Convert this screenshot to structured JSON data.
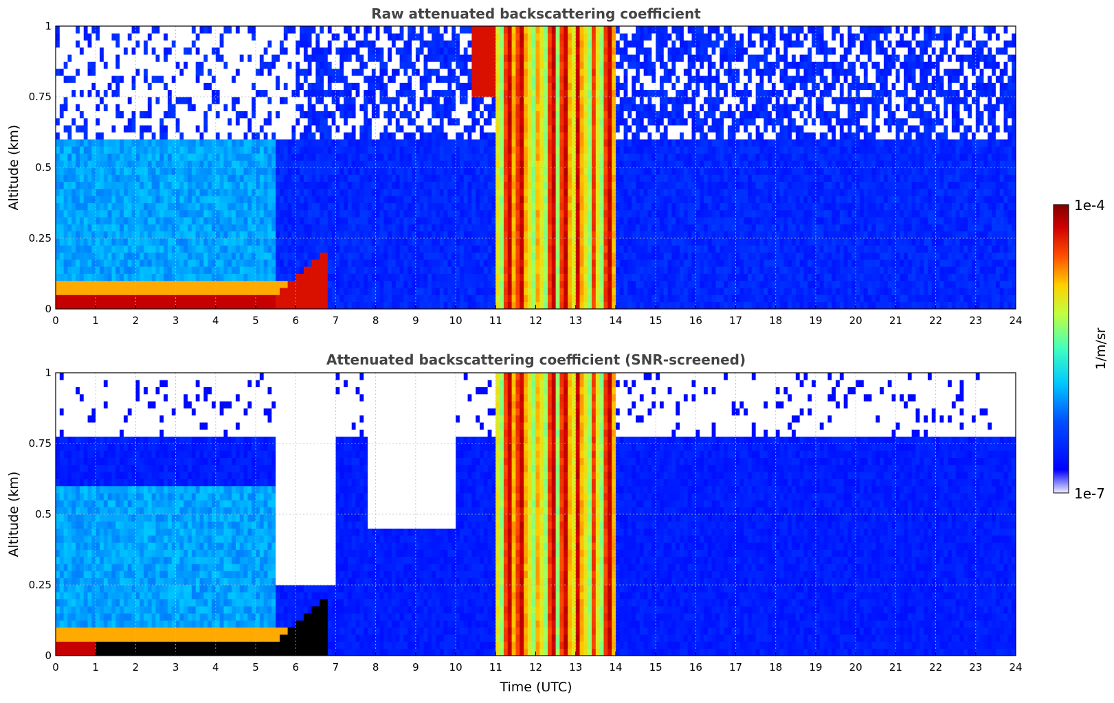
{
  "chart_data": [
    {
      "type": "heatmap",
      "title": "Raw attenuated backscattering coefficient",
      "xlabel": "",
      "ylabel": "Altitude (km)",
      "xlim": [
        0,
        24
      ],
      "ylim": [
        0,
        1
      ],
      "x_ticks": [
        "0",
        "1",
        "2",
        "3",
        "4",
        "5",
        "6",
        "7",
        "8",
        "9",
        "10",
        "11",
        "12",
        "13",
        "14",
        "15",
        "16",
        "17",
        "18",
        "19",
        "20",
        "21",
        "22",
        "23",
        "24"
      ],
      "y_ticks": [
        "0",
        "0.25",
        "0.5",
        "0.75",
        "1"
      ],
      "grid": true,
      "features": [
        {
          "start_hour": 0.2,
          "end_hour": 5.5,
          "altitude_km": 0.02,
          "level": "high"
        },
        {
          "start_hour": 5.5,
          "end_hour": 6.8,
          "altitude_km_from": 0.05,
          "altitude_km_to": 0.2,
          "level": "high"
        },
        {
          "start_hour": 11.0,
          "end_hour": 14.0,
          "altitude_km": "0-1",
          "level": "high",
          "note": "full column"
        },
        {
          "start_hour": 10.5,
          "end_hour": 11.0,
          "altitude_km_from": 0.8,
          "altitude_km_to": 1.0,
          "level": "high"
        }
      ]
    },
    {
      "type": "heatmap",
      "title": "Attenuated backscattering coefficient (SNR-screened)",
      "xlabel": "Time (UTC)",
      "ylabel": "Altitude (km)",
      "xlim": [
        0,
        24
      ],
      "ylim": [
        0,
        1
      ],
      "x_ticks": [
        "0",
        "1",
        "2",
        "3",
        "4",
        "5",
        "6",
        "7",
        "8",
        "9",
        "10",
        "11",
        "12",
        "13",
        "14",
        "15",
        "16",
        "17",
        "18",
        "19",
        "20",
        "21",
        "22",
        "23",
        "24"
      ],
      "y_ticks": [
        "0",
        "0.25",
        "0.5",
        "0.75",
        "1"
      ],
      "grid": true,
      "features": [
        {
          "start_hour": 1.0,
          "end_hour": 6.8,
          "altitude_km": 0.03,
          "level": "saturated"
        },
        {
          "start_hour": 11.0,
          "end_hour": 14.0,
          "altitude_km": "0-1",
          "level": "high"
        },
        {
          "start_hour": 14.0,
          "end_hour": 24.0,
          "altitude_km": "0-0.78",
          "level": "low"
        }
      ]
    }
  ],
  "colorbar": {
    "max_label": "1e-4",
    "min_label": "1e-7",
    "unit_label": "1/m/sr",
    "colormap": "jet",
    "colors": [
      "#eeeeff",
      "#0000ff",
      "#0050ff",
      "#00c8ff",
      "#40ffbf",
      "#c0ff40",
      "#ffd000",
      "#ff5000",
      "#d00000",
      "#800000"
    ]
  }
}
